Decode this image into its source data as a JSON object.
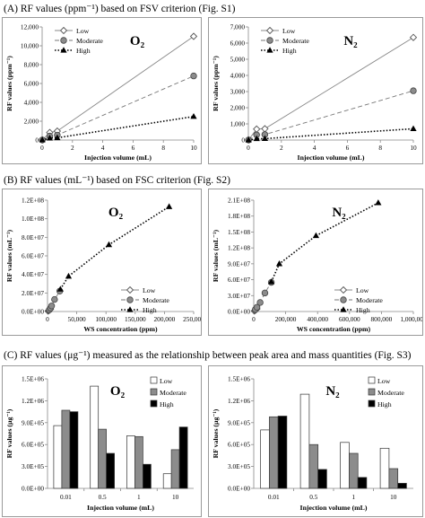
{
  "sections": [
    {
      "heading": "(A) RF values (ppm⁻¹) based on FSV criterion (Fig. S1)"
    },
    {
      "heading": "(B) RF values (mL⁻¹) based on FSC criterion (Fig. S2)"
    },
    {
      "heading": "(C) RF values (μg⁻¹) measured as the relationship between peak area and mass quantities (Fig. S3)"
    }
  ],
  "chart_data": [
    {
      "panel": "A-O2",
      "type": "line",
      "title": "O₂",
      "xlabel": "Injection volume (mL)",
      "ylabel": "RF values (ppm⁻¹)",
      "xlim": [
        0,
        10
      ],
      "ylim": [
        0,
        12000
      ],
      "xticks": [
        0,
        2,
        4,
        6,
        8,
        10
      ],
      "yticks": [
        0,
        2000,
        4000,
        6000,
        8000,
        10000,
        12000
      ],
      "yticklabels": [
        "0",
        "2,000",
        "4,000",
        "6,000",
        "8,000",
        "10,000",
        "12,000"
      ],
      "legend": "top-left",
      "grid": false,
      "series": [
        {
          "name": "Low",
          "style": "solid",
          "marker": "diamond-open",
          "x": [
            0.01,
            0.5,
            1,
            10
          ],
          "y": [
            12,
            800,
            950,
            11000
          ]
        },
        {
          "name": "Moderate",
          "style": "dashed",
          "marker": "circle-gray",
          "x": [
            0.01,
            0.5,
            1,
            10
          ],
          "y": [
            8,
            420,
            520,
            6800
          ]
        },
        {
          "name": "High",
          "style": "dotted",
          "marker": "triangle-black",
          "x": [
            0.01,
            0.5,
            1,
            10
          ],
          "y": [
            4,
            200,
            240,
            2500
          ]
        }
      ]
    },
    {
      "panel": "A-N2",
      "type": "line",
      "title": "N₂",
      "xlabel": "Injection volume (mL)",
      "ylabel": "RF values (ppm⁻¹)",
      "xlim": [
        0,
        10
      ],
      "ylim": [
        0,
        7000
      ],
      "xticks": [
        0,
        2,
        4,
        6,
        8,
        10
      ],
      "yticks": [
        0,
        1000,
        2000,
        3000,
        4000,
        5000,
        6000,
        7000
      ],
      "yticklabels": [
        "0",
        "1,000",
        "2,000",
        "3,000",
        "4,000",
        "5,000",
        "6,000",
        "7,000"
      ],
      "legend": "top-left",
      "grid": false,
      "series": [
        {
          "name": "Low",
          "style": "solid",
          "marker": "diamond-open",
          "x": [
            0.01,
            0.5,
            1,
            10
          ],
          "y": [
            10,
            680,
            700,
            6350
          ]
        },
        {
          "name": "Moderate",
          "style": "dashed",
          "marker": "circle-gray",
          "x": [
            0.01,
            0.5,
            1,
            10
          ],
          "y": [
            6,
            320,
            340,
            3050
          ]
        },
        {
          "name": "High",
          "style": "dotted",
          "marker": "triangle-black",
          "x": [
            0.01,
            0.5,
            1,
            10
          ],
          "y": [
            2,
            80,
            90,
            700
          ]
        }
      ]
    },
    {
      "panel": "B-O2",
      "type": "line",
      "title": "O₂",
      "xlabel": "WS concentration (ppm)",
      "ylabel": "RF values (mL⁻¹)",
      "xlim": [
        0,
        250000
      ],
      "ylim": [
        0,
        120000000
      ],
      "xticks": [
        0,
        50000,
        100000,
        150000,
        200000,
        250000
      ],
      "xticklabels": [
        "0",
        "50,000",
        "100,000",
        "150,000",
        "200,000",
        "250,000"
      ],
      "yticks": [
        0,
        20000000,
        40000000,
        60000000,
        80000000,
        100000000,
        120000000
      ],
      "yticklabels": [
        "0.0E+00",
        "2.0E+07",
        "4.0E+07",
        "6.0E+07",
        "8.0E+07",
        "1.0E+08",
        "1.2E+08"
      ],
      "legend": "right",
      "grid": false,
      "series": [
        {
          "name": "Low",
          "style": "solid",
          "marker": "diamond-open",
          "x": [
            1000,
            2000,
            3000,
            4000,
            5000
          ],
          "y": [
            500000,
            1000000,
            1500000,
            2000000,
            2500000
          ]
        },
        {
          "name": "Moderate",
          "style": "dashed",
          "marker": "circle-gray",
          "x": [
            3000,
            5000,
            7000,
            12000,
            21000
          ],
          "y": [
            1800000,
            3500000,
            6000000,
            13000000,
            22000000
          ]
        },
        {
          "name": "High",
          "style": "dotted",
          "marker": "triangle-black",
          "x": [
            22000,
            36000,
            105000,
            208000
          ],
          "y": [
            24000000,
            38000000,
            72000000,
            113000000
          ]
        }
      ]
    },
    {
      "panel": "B-N2",
      "type": "line",
      "title": "N₂",
      "xlabel": "WS concentration (ppm)",
      "ylabel": "RF values (mL⁻¹)",
      "xlim": [
        0,
        1000000
      ],
      "ylim": [
        0,
        210000000
      ],
      "xticks": [
        0,
        200000,
        400000,
        600000,
        800000,
        1000000
      ],
      "xticklabels": [
        "0",
        "200,000",
        "400,000",
        "600,000",
        "800,000",
        "1,000,000"
      ],
      "yticks": [
        0,
        30000000,
        60000000,
        90000000,
        120000000,
        150000000,
        180000000,
        210000000
      ],
      "yticklabels": [
        "0.0E+00",
        "3.0E+07",
        "6.0E+07",
        "9.0E+07",
        "1.2E+08",
        "1.5E+08",
        "1.8E+08",
        "2.1E+08"
      ],
      "legend": "right",
      "grid": false,
      "series": [
        {
          "name": "Low",
          "style": "solid",
          "marker": "diamond-open",
          "x": [
            4000,
            8000,
            12000,
            16000,
            20000
          ],
          "y": [
            1000000,
            2000000,
            3000000,
            4000000,
            5000000
          ]
        },
        {
          "name": "Moderate",
          "style": "dashed",
          "marker": "circle-gray",
          "x": [
            10000,
            20000,
            40000,
            70000,
            110000
          ],
          "y": [
            4000000,
            8000000,
            17000000,
            35000000,
            55000000
          ]
        },
        {
          "name": "High",
          "style": "dotted",
          "marker": "triangle-black",
          "x": [
            110000,
            160000,
            390000,
            780000
          ],
          "y": [
            56000000,
            90000000,
            143000000,
            205000000
          ]
        }
      ]
    },
    {
      "panel": "C-O2",
      "type": "bar",
      "title": "O₂",
      "xlabel": "Injection volume (mL)",
      "ylabel": "RF values (μg⁻¹)",
      "categories": [
        "0.01",
        "0.5",
        "1",
        "10"
      ],
      "ylim": [
        0,
        1500000
      ],
      "yticks": [
        0,
        300000,
        600000,
        900000,
        1200000,
        1500000
      ],
      "yticklabels": [
        "0.0E+00",
        "3.0E+05",
        "6.0E+05",
        "9.0E+05",
        "1.2E+06",
        "1.5E+06"
      ],
      "legend": "top-right",
      "grid": false,
      "series": [
        {
          "name": "Low",
          "color": "#ffffff",
          "values": [
            860000,
            1400000,
            720000,
            200000
          ]
        },
        {
          "name": "Moderate",
          "color": "#8c8c8c",
          "values": [
            1070000,
            810000,
            710000,
            530000
          ]
        },
        {
          "name": "High",
          "color": "#000000",
          "values": [
            1050000,
            480000,
            330000,
            840000
          ]
        }
      ]
    },
    {
      "panel": "C-N2",
      "type": "bar",
      "title": "N₂",
      "xlabel": "Injection volume (mL)",
      "ylabel": "RF values (μg⁻¹)",
      "categories": [
        "0.01",
        "0.5",
        "1",
        "10"
      ],
      "ylim": [
        0,
        1500000
      ],
      "yticks": [
        0,
        300000,
        600000,
        900000,
        1200000,
        1500000
      ],
      "yticklabels": [
        "0.0E+00",
        "3.0E+05",
        "6.0E+05",
        "9.0E+05",
        "1.2E+06",
        "1.5E+06"
      ],
      "legend": "top-right",
      "grid": false,
      "series": [
        {
          "name": "Low",
          "color": "#ffffff",
          "values": [
            800000,
            1290000,
            630000,
            550000
          ]
        },
        {
          "name": "Moderate",
          "color": "#8c8c8c",
          "values": [
            980000,
            600000,
            480000,
            270000
          ]
        },
        {
          "name": "High",
          "color": "#000000",
          "values": [
            990000,
            260000,
            150000,
            70000
          ]
        }
      ]
    }
  ]
}
